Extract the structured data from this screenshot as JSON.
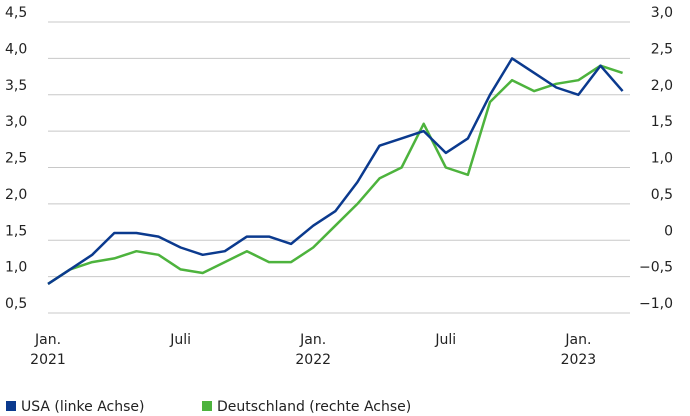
{
  "chart_data": {
    "type": "line",
    "x": [
      "2021-01",
      "2021-02",
      "2021-03",
      "2021-04",
      "2021-05",
      "2021-06",
      "2021-07",
      "2021-08",
      "2021-09",
      "2021-10",
      "2021-11",
      "2021-12",
      "2022-01",
      "2022-02",
      "2022-03",
      "2022-04",
      "2022-05",
      "2022-06",
      "2022-07",
      "2022-08",
      "2022-09",
      "2022-10",
      "2022-11",
      "2022-12",
      "2023-01",
      "2023-02",
      "2023-03"
    ],
    "xticks": [
      {
        "value": "2021-01",
        "label": [
          "Jan.",
          "2021"
        ]
      },
      {
        "value": "2021-07",
        "label": [
          "Juli"
        ]
      },
      {
        "value": "2022-01",
        "label": [
          "Jan.",
          "2022"
        ]
      },
      {
        "value": "2022-07",
        "label": [
          "Juli"
        ]
      },
      {
        "value": "2023-01",
        "label": [
          "Jan.",
          "2023"
        ]
      }
    ],
    "series": [
      {
        "name": "USA (linke Achse)",
        "color": "#0b3a8e",
        "values": [
          0.9,
          1.1,
          1.3,
          1.6,
          1.6,
          1.55,
          1.4,
          1.3,
          1.35,
          1.55,
          1.55,
          1.45,
          1.7,
          1.9,
          2.3,
          2.8,
          2.9,
          3.0,
          2.7,
          2.9,
          3.5,
          4.0,
          3.8,
          3.6,
          3.5,
          3.9,
          3.55
        ]
      },
      {
        "name": "Deutschland (rechte Achse)",
        "color": "#4db33d",
        "axis": "y2",
        "values": [
          -0.6,
          -0.4,
          -0.3,
          -0.25,
          -0.15,
          -0.2,
          -0.4,
          -0.45,
          -0.3,
          -0.15,
          -0.3,
          -0.3,
          -0.1,
          0.2,
          0.5,
          0.85,
          1.0,
          1.6,
          1.0,
          0.9,
          1.9,
          2.2,
          2.05,
          2.15,
          2.2,
          2.4,
          2.3
        ]
      }
    ],
    "ylim": [
      0.5,
      4.5
    ],
    "yticks": [
      {
        "value": 0.5,
        "label": "0,5"
      },
      {
        "value": 1.0,
        "label": "1,0"
      },
      {
        "value": 1.5,
        "label": "1,5"
      },
      {
        "value": 2.0,
        "label": "2,0"
      },
      {
        "value": 2.5,
        "label": "2,5"
      },
      {
        "value": 3.0,
        "label": "3,0"
      },
      {
        "value": 3.5,
        "label": "3,5"
      },
      {
        "value": 4.0,
        "label": "4,0"
      },
      {
        "value": 4.5,
        "label": "4,5"
      }
    ],
    "y2lim": [
      -1.0,
      3.0
    ],
    "y2ticks": [
      {
        "value": -1.0,
        "label": "−1,0"
      },
      {
        "value": -0.5,
        "label": "−0,5"
      },
      0,
      {
        "value": 0.5,
        "label": "0,5"
      },
      {
        "value": 1.0,
        "label": "1,0"
      },
      {
        "value": 1.5,
        "label": "1,5"
      },
      {
        "value": 2.0,
        "label": "2,0"
      },
      {
        "value": 2.5,
        "label": "2,5"
      },
      {
        "value": 3.0,
        "label": "3,0"
      }
    ],
    "grid": true
  }
}
